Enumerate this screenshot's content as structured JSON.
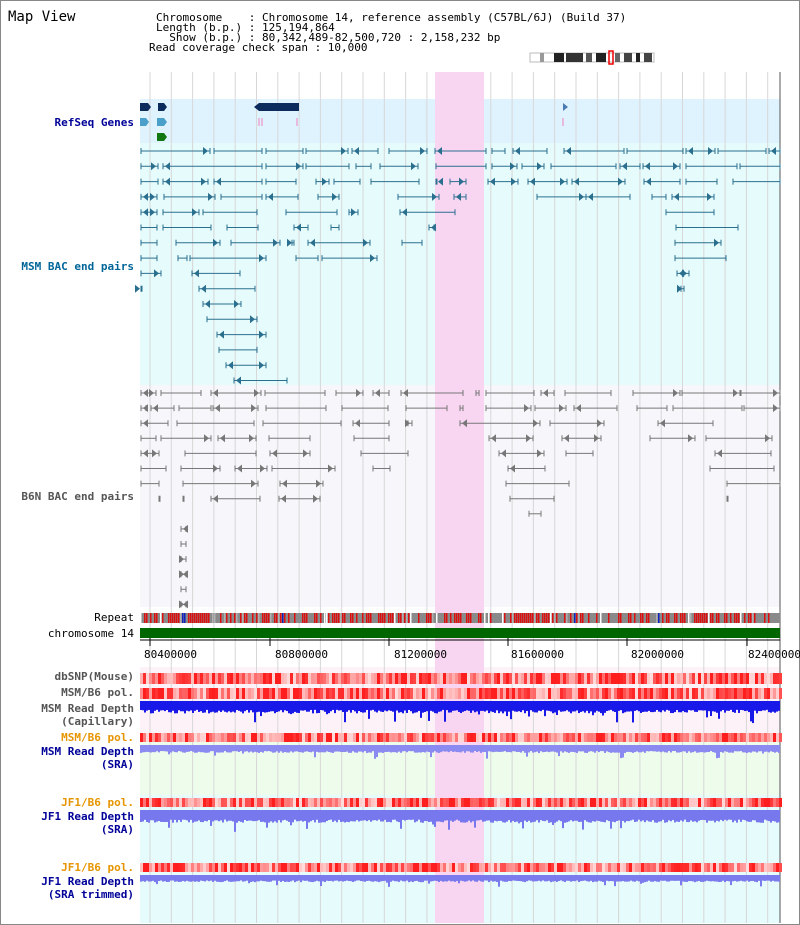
{
  "title": "Map View",
  "header": {
    "chromosome_line": "Chromosome    : Chromosome 14, reference assembly (C57BL/6J) (Build 37)",
    "length_line": "Length (b.p.) : 125,194,864",
    "show_line": "  Show (b.p.) : 80,342,489-82,500,720 : 2,158,232 bp",
    "coverage_line": "Read coverage check span : 10,000"
  },
  "tracks": {
    "refseq": "RefSeq Genes",
    "msm_bac": "MSM BAC end pairs",
    "b6n_bac": "B6N BAC end pairs",
    "repeat": "Repeat",
    "chromosome": "chromosome 14",
    "dbsnp": "dbSNP(Mouse)",
    "msm_b6_pol_1": "MSM/B6 pol.",
    "msm_depth_cap_1": "MSM Read Depth",
    "msm_depth_cap_2": "(Capillary)",
    "msm_b6_pol_2": "MSM/B6 pol.",
    "msm_depth_sra_1": "MSM Read Depth",
    "msm_depth_sra_2": "(SRA)",
    "jf1_b6_pol_1": "JF1/B6 pol.",
    "jf1_depth_sra_1": "JF1 Read Depth",
    "jf1_depth_sra_2": "(SRA)",
    "jf1_b6_pol_2": "JF1/B6 pol.",
    "jf1_depth_trim_1": "JF1 Read Depth",
    "jf1_depth_trim_2": "(SRA trimmed)"
  },
  "axis": {
    "ticks": [
      "80400000",
      "80800000",
      "81200000",
      "81600000",
      "82000000",
      "82400000"
    ]
  },
  "colors": {
    "label_dark_blue": "#000099",
    "label_teal": "#006699",
    "label_gray": "#555555",
    "label_orange": "#e69500",
    "msm_feature": "#2b6f8f",
    "b6n_feature": "#777777",
    "chromosome_bar": "#006600",
    "highlight": "#f8d6f2"
  }
}
